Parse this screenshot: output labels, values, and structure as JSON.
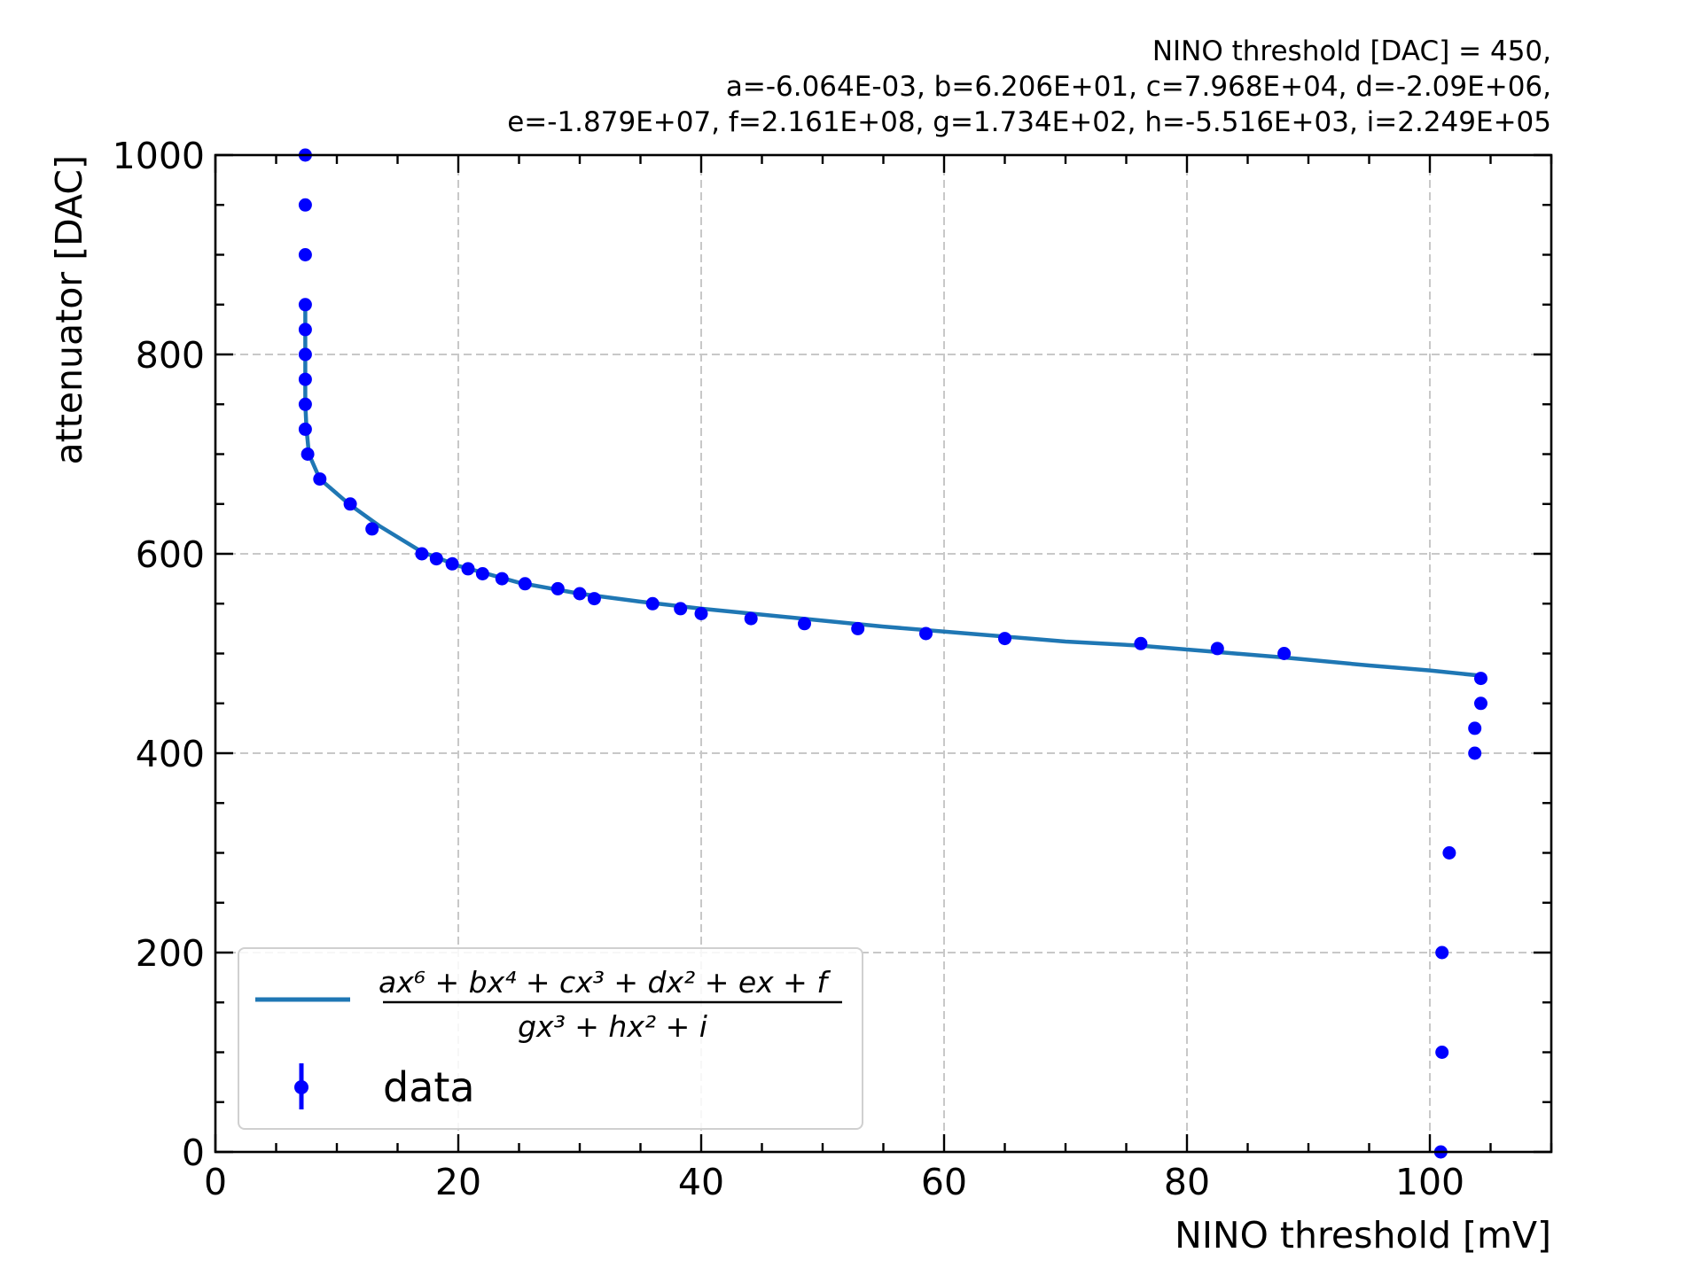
{
  "chart_data": {
    "type": "scatter",
    "title_lines": [
      "NINO threshold [DAC] = 450,",
      "a=-6.064E-03, b=6.206E+01, c=7.968E+04, d=-2.09E+06,",
      "e=-1.879E+07, f=2.161E+08, g=1.734E+02, h=-5.516E+03, i=2.249E+05"
    ],
    "xlabel": "NINO threshold [mV]",
    "ylabel": "attenuator [DAC]",
    "xlim": [
      0,
      110
    ],
    "ylim": [
      0,
      1000
    ],
    "x_ticks": [
      0,
      20,
      40,
      60,
      80,
      100
    ],
    "y_ticks": [
      0,
      200,
      400,
      600,
      800,
      1000
    ],
    "grid": true,
    "legend_placement": "lower-left",
    "legend": {
      "fit_numerator": "ax⁶ + bx⁴ + cx³ + dx² + ex + f",
      "fit_denominator": "gx³ + hx² + i",
      "data_label": "data"
    },
    "colors": {
      "data": "#0000ff",
      "fit": "#1f77b4",
      "grid": "#c8c8c8"
    },
    "series": [
      {
        "name": "data",
        "kind": "points",
        "points": [
          [
            7.4,
            1000
          ],
          [
            7.4,
            950
          ],
          [
            7.4,
            900
          ],
          [
            7.4,
            850
          ],
          [
            7.4,
            825
          ],
          [
            7.4,
            800
          ],
          [
            7.4,
            775
          ],
          [
            7.4,
            750
          ],
          [
            7.4,
            725
          ],
          [
            7.6,
            700
          ],
          [
            8.6,
            675
          ],
          [
            11.1,
            650
          ],
          [
            12.9,
            625
          ],
          [
            17.0,
            600
          ],
          [
            18.2,
            595
          ],
          [
            19.5,
            590
          ],
          [
            20.8,
            585
          ],
          [
            22.0,
            580
          ],
          [
            23.6,
            575
          ],
          [
            25.5,
            570
          ],
          [
            28.2,
            565
          ],
          [
            30.0,
            560
          ],
          [
            31.2,
            555
          ],
          [
            36.0,
            550
          ],
          [
            38.3,
            545
          ],
          [
            40.0,
            540
          ],
          [
            44.1,
            535
          ],
          [
            48.5,
            530
          ],
          [
            52.9,
            525
          ],
          [
            58.5,
            520
          ],
          [
            65.0,
            515
          ],
          [
            76.2,
            510
          ],
          [
            82.5,
            505
          ],
          [
            88.0,
            500
          ],
          [
            104.2,
            475
          ],
          [
            104.2,
            450
          ],
          [
            103.7,
            425
          ],
          [
            103.7,
            400
          ],
          [
            101.6,
            300
          ],
          [
            101.0,
            200
          ],
          [
            101.0,
            100
          ],
          [
            100.9,
            0
          ]
        ]
      },
      {
        "name": "fit",
        "kind": "line",
        "points": [
          [
            7.4,
            850
          ],
          [
            7.4,
            800
          ],
          [
            7.4,
            750
          ],
          [
            7.5,
            725
          ],
          [
            7.7,
            700
          ],
          [
            8.6,
            675
          ],
          [
            11.0,
            650
          ],
          [
            13.5,
            628
          ],
          [
            17.0,
            602
          ],
          [
            20.0,
            588
          ],
          [
            25.0,
            571
          ],
          [
            30.0,
            560
          ],
          [
            35.0,
            552
          ],
          [
            40.0,
            545
          ],
          [
            45.0,
            539
          ],
          [
            50.0,
            533
          ],
          [
            55.0,
            527
          ],
          [
            60.0,
            522
          ],
          [
            65.0,
            517
          ],
          [
            70.0,
            512
          ],
          [
            76.0,
            508
          ],
          [
            82.0,
            502
          ],
          [
            88.0,
            496
          ],
          [
            95.0,
            488
          ],
          [
            100.0,
            483
          ],
          [
            104.0,
            478
          ]
        ]
      }
    ]
  }
}
